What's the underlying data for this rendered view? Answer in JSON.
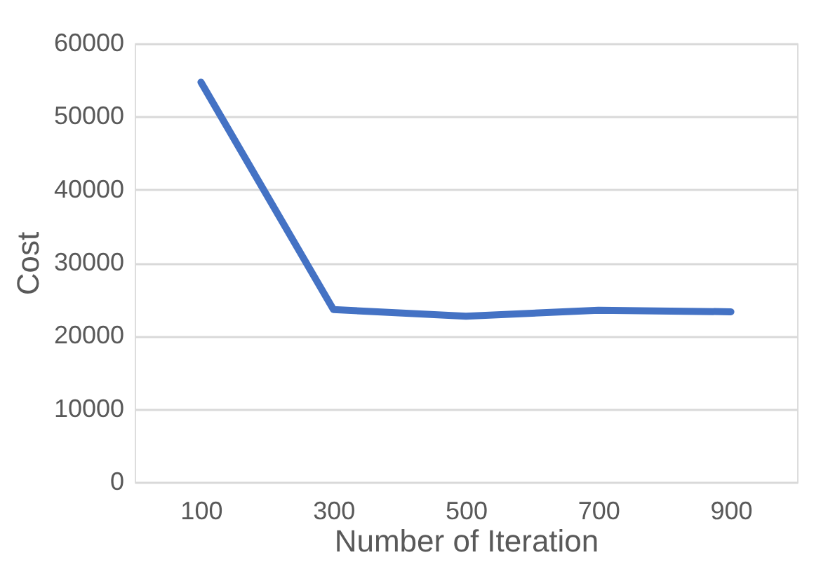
{
  "chart_data": {
    "type": "line",
    "xlabel": "Number of Iteration",
    "ylabel": "Cost",
    "categories": [
      "100",
      "300",
      "500",
      "700",
      "900"
    ],
    "series": [
      {
        "color": "#4472c4",
        "values": [
          54700,
          23600,
          22700,
          23500,
          23300
        ]
      }
    ],
    "ylim": [
      0,
      60000
    ],
    "yticks": [
      0,
      10000,
      20000,
      30000,
      40000,
      50000,
      60000
    ],
    "grid": "y",
    "marker": "none",
    "line_style": "solid"
  }
}
